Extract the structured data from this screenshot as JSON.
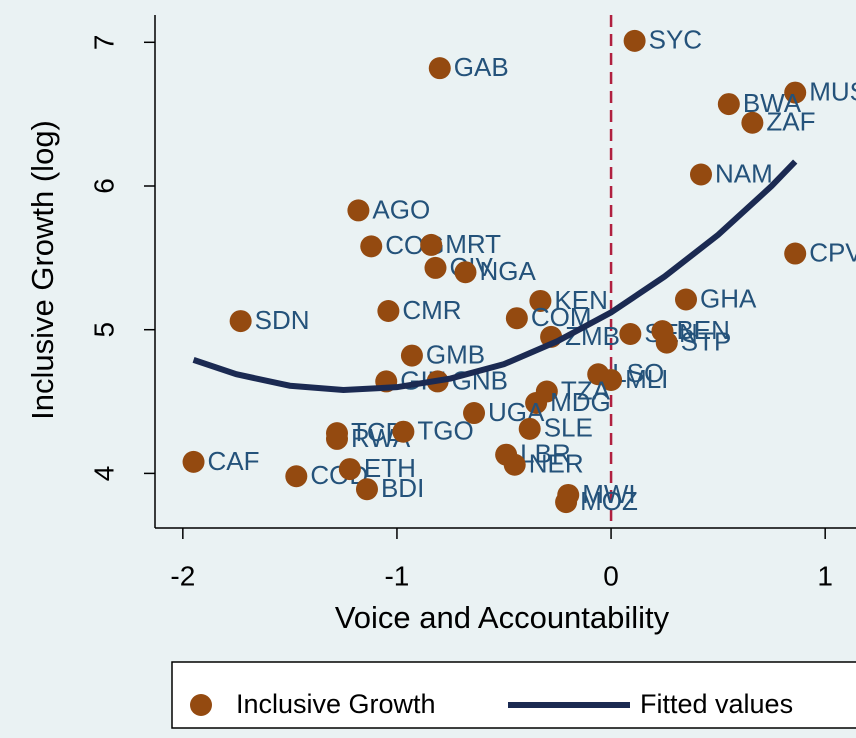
{
  "chart_data": {
    "type": "scatter",
    "xlabel": "Voice and Accountability",
    "ylabel": "Inclusive Growth (log)",
    "xlim": [
      -2.13,
      1.2
    ],
    "ylim": [
      3.62,
      7.19
    ],
    "xticks": [
      -2,
      -1,
      0,
      1
    ],
    "yticks": [
      4,
      5,
      6,
      7
    ],
    "xline": 0,
    "xline_color": "#b0203f",
    "series": [
      {
        "name": "Inclusive Growth",
        "kind": "scatter",
        "color": "#944a10",
        "label_color": "#24527a",
        "labels": [
          "SYC",
          "GAB",
          "MUS",
          "BWA",
          "ZAF",
          "NAM",
          "AGO",
          "COG",
          "MRT",
          "CIV",
          "NGA",
          "CPV",
          "GHA",
          "KEN",
          "CMR",
          "COM",
          "SDN",
          "ZMB",
          "SEN",
          "BEN",
          "STP",
          "GMB",
          "GIN",
          "GNB",
          "LSO",
          "MLI",
          "TZA",
          "MDG",
          "UGA",
          "SLE",
          "TCD",
          "RWA",
          "TGO",
          "CAF",
          "COD",
          "ETH",
          "BDI",
          "LBR",
          "NER",
          "MWI",
          "MOZ"
        ],
        "x": [
          0.11,
          -0.8,
          0.86,
          0.55,
          0.66,
          0.42,
          -1.18,
          -1.12,
          -0.84,
          -0.82,
          -0.68,
          0.86,
          0.35,
          -0.33,
          -1.04,
          -0.44,
          -1.73,
          -0.28,
          0.09,
          0.24,
          0.26,
          -0.93,
          -1.05,
          -0.81,
          -0.06,
          0.0,
          -0.3,
          -0.35,
          -0.64,
          -0.38,
          -1.28,
          -1.28,
          -0.97,
          -1.95,
          -1.47,
          -1.22,
          -1.14,
          -0.49,
          -0.45,
          -0.2,
          -0.21
        ],
        "values": [
          7.01,
          6.82,
          6.65,
          6.57,
          6.44,
          6.08,
          5.83,
          5.58,
          5.59,
          5.43,
          5.4,
          5.53,
          5.21,
          5.2,
          5.13,
          5.08,
          5.06,
          4.95,
          4.97,
          4.99,
          4.91,
          4.82,
          4.64,
          4.64,
          4.69,
          4.65,
          4.57,
          4.49,
          4.42,
          4.31,
          4.28,
          4.24,
          4.29,
          4.08,
          3.98,
          4.03,
          3.89,
          4.13,
          4.06,
          3.85,
          3.8
        ]
      },
      {
        "name": "Fitted values",
        "kind": "line",
        "color": "#1b2a52",
        "x": [
          -1.95,
          -1.75,
          -1.5,
          -1.25,
          -1,
          -0.75,
          -0.5,
          -0.25,
          0,
          0.25,
          0.5,
          0.75,
          0.86
        ],
        "values": [
          4.79,
          4.69,
          4.61,
          4.58,
          4.6,
          4.66,
          4.76,
          4.92,
          5.12,
          5.37,
          5.66,
          6.0,
          6.17
        ]
      }
    ]
  }
}
